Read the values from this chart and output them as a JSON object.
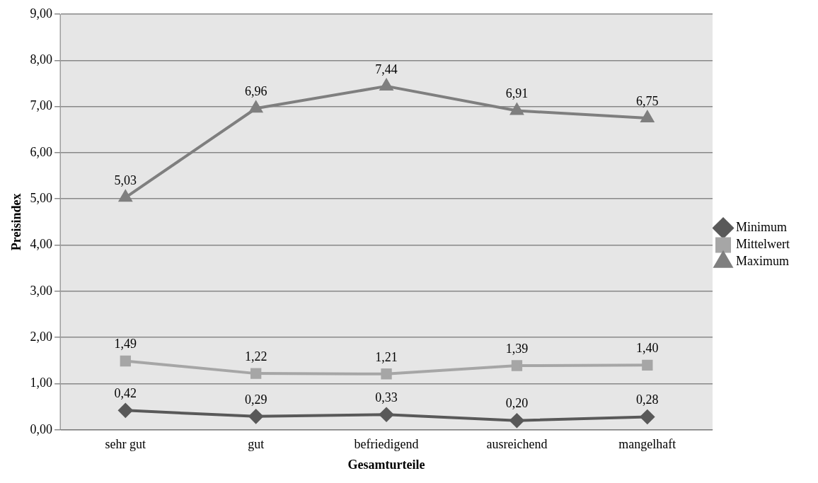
{
  "chart_data": {
    "type": "line",
    "xlabel": "Gesamturteile",
    "ylabel": "Preisindex",
    "categories": [
      "sehr gut",
      "gut",
      "befriedigend",
      "ausreichend",
      "mangelhaft"
    ],
    "series": [
      {
        "name": "Minimum",
        "color": "#595959",
        "marker": "diamond",
        "values": [
          0.42,
          0.29,
          0.33,
          0.2,
          0.28
        ],
        "value_labels": [
          "0,42",
          "0,29",
          "0,33",
          "0,20",
          "0,28"
        ]
      },
      {
        "name": "Mittelwert",
        "color": "#a6a6a6",
        "marker": "square",
        "values": [
          1.49,
          1.22,
          1.21,
          1.39,
          1.4
        ],
        "value_labels": [
          "1,49",
          "1,22",
          "1,21",
          "1,39",
          "1,40"
        ]
      },
      {
        "name": "Maximum",
        "color": "#7f7f7f",
        "marker": "triangle",
        "values": [
          5.03,
          6.96,
          7.44,
          6.91,
          6.75
        ],
        "value_labels": [
          "5,03",
          "6,96",
          "7,44",
          "6,91",
          "6,75"
        ]
      }
    ],
    "ylim": [
      0,
      9
    ],
    "yticks": [
      {
        "value": 0,
        "label": "0,00"
      },
      {
        "value": 1,
        "label": "1,00"
      },
      {
        "value": 2,
        "label": "2,00"
      },
      {
        "value": 3,
        "label": "3,00"
      },
      {
        "value": 4,
        "label": "4,00"
      },
      {
        "value": 5,
        "label": "5,00"
      },
      {
        "value": 6,
        "label": "6,00"
      },
      {
        "value": 7,
        "label": "7,00"
      },
      {
        "value": 8,
        "label": "8,00"
      },
      {
        "value": 9,
        "label": "9,00"
      }
    ],
    "grid": "y",
    "legend": "right",
    "line_style": "solid"
  }
}
